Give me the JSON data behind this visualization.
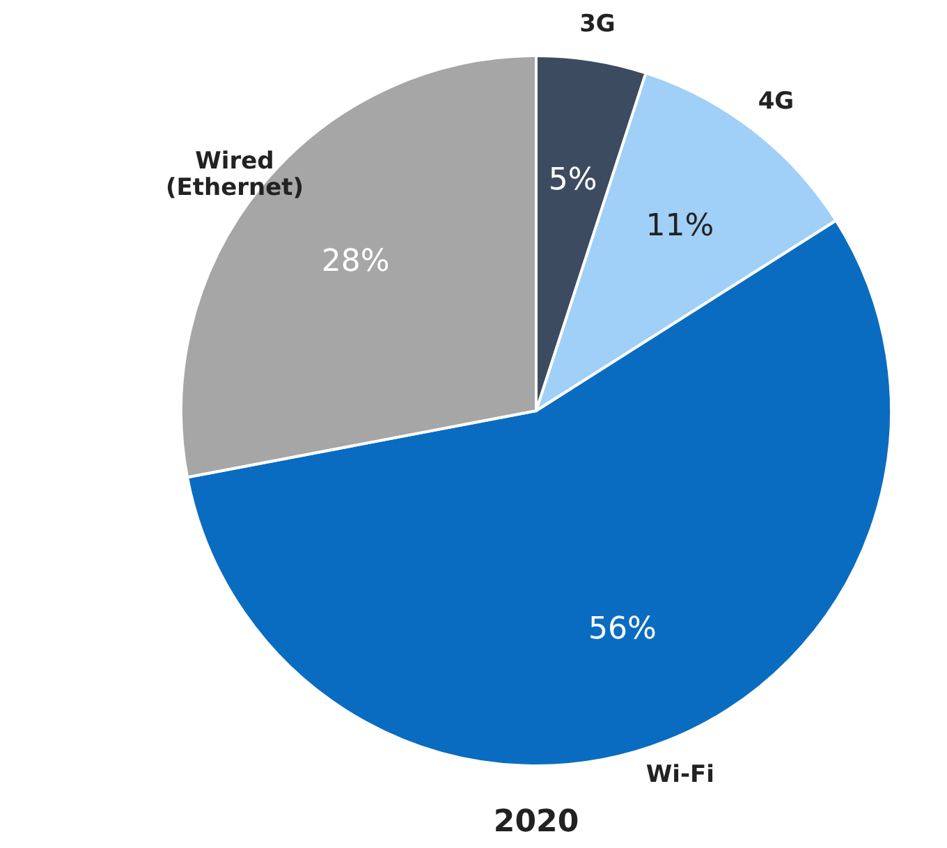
{
  "chart_data": {
    "type": "pie",
    "title": "2020",
    "categories": [
      "3G",
      "4G",
      "Wi-Fi",
      "Wired (Ethernet)"
    ],
    "values": [
      5,
      11,
      56,
      28
    ],
    "value_labels": [
      "5%",
      "11%",
      "56%",
      "28%"
    ],
    "colors": [
      "#3d4b60",
      "#a0cff7",
      "#0a6cc0",
      "#a6a6a6"
    ]
  }
}
